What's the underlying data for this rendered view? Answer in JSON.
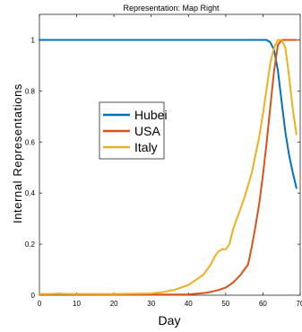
{
  "chart_data": {
    "type": "line",
    "title": "Representation: Map Right",
    "xlabel": "Day",
    "ylabel": "Internal Representations",
    "xlim": [
      0,
      70
    ],
    "ylim": [
      0,
      1.1
    ],
    "xticks": [
      0,
      10,
      20,
      30,
      40,
      50,
      60,
      70
    ],
    "xtick_labels": [
      "0",
      "10",
      "20",
      "30",
      "40",
      "50",
      "60",
      "70"
    ],
    "yticks": [
      0,
      0.2,
      0.4,
      0.6,
      0.8,
      1
    ],
    "ytick_labels": [
      "0",
      "0.2",
      "0.4",
      "0.6",
      "0.8",
      "1"
    ],
    "grid": false,
    "legend_position": "center-left",
    "series": [
      {
        "name": "Hubei",
        "color": "#0072BD",
        "x": [
          0,
          10,
          20,
          30,
          40,
          50,
          58,
          61,
          62,
          63,
          64,
          65,
          66,
          67,
          68,
          69
        ],
        "y": [
          1,
          1,
          1,
          1,
          1,
          1,
          1,
          1,
          0.99,
          0.96,
          0.88,
          0.76,
          0.64,
          0.55,
          0.48,
          0.42
        ]
      },
      {
        "name": "USA",
        "color": "#D95319",
        "x": [
          0,
          3,
          5,
          8,
          10,
          20,
          30,
          40,
          45,
          48,
          50,
          52,
          54,
          55,
          56,
          57,
          58,
          59,
          60,
          61,
          62,
          63,
          64,
          65,
          66,
          67,
          68,
          69
        ],
        "y": [
          0.003,
          0.004,
          0.006,
          0.004,
          0.003,
          0.002,
          0.002,
          0.003,
          0.01,
          0.02,
          0.03,
          0.05,
          0.08,
          0.1,
          0.12,
          0.19,
          0.27,
          0.36,
          0.47,
          0.6,
          0.74,
          0.88,
          0.98,
          1.0,
          1.0,
          1.0,
          1.0,
          1.0
        ]
      },
      {
        "name": "Italy",
        "color": "#EDB120",
        "x": [
          0,
          10,
          20,
          30,
          33,
          36,
          38,
          40,
          42,
          44,
          45,
          46,
          47,
          48,
          49,
          50,
          51,
          52,
          53,
          54,
          55,
          56,
          57,
          58,
          59,
          60,
          61,
          62,
          63,
          64,
          65,
          66,
          67,
          68,
          69
        ],
        "y": [
          0.005,
          0.005,
          0.005,
          0.007,
          0.012,
          0.02,
          0.03,
          0.04,
          0.06,
          0.08,
          0.1,
          0.12,
          0.15,
          0.17,
          0.18,
          0.18,
          0.2,
          0.26,
          0.3,
          0.34,
          0.38,
          0.43,
          0.48,
          0.55,
          0.62,
          0.71,
          0.81,
          0.91,
          0.97,
          1.0,
          1.0,
          0.97,
          0.86,
          0.73,
          0.63
        ]
      }
    ]
  }
}
